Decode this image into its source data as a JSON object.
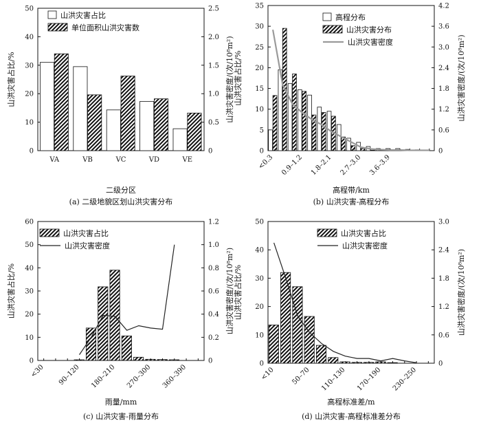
{
  "chart_data": [
    {
      "id": "a",
      "type": "bar",
      "title": "",
      "caption": "(a) 二级地貌区划山洪灾害分布",
      "xlabel": "二级分区",
      "ylabel": "山洪灾害占比/%",
      "y2label": "山洪灾害密度/(次/10⁸m²)",
      "categories": [
        "VA",
        "VB",
        "VC",
        "VD",
        "VE"
      ],
      "ylim": [
        0,
        50
      ],
      "yticks": [
        "0",
        "10",
        "20",
        "30",
        "40",
        "50"
      ],
      "y2lim": [
        0,
        2.5
      ],
      "y2ticks": [
        "0",
        "0.5",
        "1.0",
        "1.5",
        "2.0",
        "2.5"
      ],
      "series": [
        {
          "name": "山洪灾害占比",
          "kind": "bar",
          "axis": "left",
          "style": "open",
          "values": [
            31,
            29.5,
            14.3,
            17.3,
            7.7
          ]
        },
        {
          "name": "单位面积山洪灾害数",
          "kind": "bar",
          "axis": "right",
          "style": "hatch",
          "values": [
            1.7,
            0.98,
            1.31,
            0.91,
            0.66
          ]
        }
      ],
      "legend": "top-left"
    },
    {
      "id": "b",
      "type": "bar",
      "title": "",
      "caption": "(b) 山洪灾害-高程分布",
      "xlabel": "高程带/km",
      "ylabel": "山洪灾害占比/%",
      "y2label": "山洪灾害密度/(次/10⁸m²)",
      "categories": [
        "<0.3",
        "0.3–0.6",
        "0.6–0.9",
        "0.9–1.2",
        "1.2–1.5",
        "1.5–1.8",
        "1.8–2.1",
        "2.1–2.4",
        "2.4–2.7",
        "2.7–3.0",
        "3.0–3.3",
        "3.3–3.6",
        "3.6–3.9",
        "3.9–4.2",
        "4.2–4.5",
        "4.5–4.8",
        "4.8–5.1"
      ],
      "xtick_labels": [
        "<0.3",
        "",
        "",
        "0.9–1.2",
        "",
        "",
        "1.8–2.1",
        "",
        "",
        "2.7–3.0",
        "",
        "",
        "3.6–3.9",
        "",
        "",
        "",
        ""
      ],
      "ylim": [
        0,
        35
      ],
      "yticks": [
        "0",
        "5",
        "10",
        "15",
        "20",
        "25",
        "30",
        "35"
      ],
      "y2lim": [
        0,
        4.2
      ],
      "y2ticks": [
        "0",
        "0.6",
        "1.2",
        "1.8",
        "2.4",
        "3.0",
        "3.6",
        "4.2"
      ],
      "series": [
        {
          "name": "高程分布",
          "kind": "bar",
          "axis": "left",
          "style": "open",
          "values": [
            5,
            19.5,
            16.2,
            14.7,
            13.4,
            10.5,
            9.5,
            6.3,
            3,
            2,
            1,
            0.5,
            0.5,
            0.5,
            0.3,
            0.2,
            0.1
          ]
        },
        {
          "name": "山洪灾害分布",
          "kind": "bar",
          "axis": "left",
          "style": "hatch",
          "values": [
            13.3,
            29.5,
            18.5,
            14.3,
            8.6,
            9.2,
            8.3,
            3.3,
            1.2,
            0.5,
            0.1,
            0.1,
            0,
            0,
            0,
            0,
            0
          ]
        },
        {
          "name": "山洪灾害密度",
          "kind": "line",
          "axis": "right",
          "color": "#9a9a9a",
          "values": [
            3.5,
            1.9,
            1.35,
            1.1,
            0.9,
            0.75,
            0.55,
            0.4,
            0.25,
            0.1,
            0.05,
            0.03,
            0.02,
            0.02,
            0.01,
            0.01,
            0.01
          ]
        }
      ],
      "legend": "top-right"
    },
    {
      "id": "c",
      "type": "bar",
      "title": "",
      "caption": "(c) 山洪灾害-雨量分布",
      "xlabel": "雨量/mm",
      "ylabel": "山洪灾害占比/%",
      "y2label": "山洪灾害密度/(次/10⁸m²)",
      "categories": [
        "<30",
        "30–60",
        "60–90",
        "90–120",
        "120–150",
        "150–180",
        "180–210",
        "210–240",
        "240–270",
        "270–300",
        "300–330",
        "330–360",
        "360–390",
        "390–420"
      ],
      "xtick_labels": [
        "<30",
        "",
        "",
        "90–120",
        "",
        "",
        "180–210",
        "",
        "",
        "270–300",
        "",
        "",
        "360–390",
        ""
      ],
      "ylim": [
        0,
        60
      ],
      "yticks": [
        "0",
        "10",
        "20",
        "30",
        "40",
        "50",
        "60"
      ],
      "y2lim": [
        0,
        1.2
      ],
      "y2ticks": [
        "0",
        "0.2",
        "0.4",
        "0.6",
        "0.8",
        "1.0",
        "1.2"
      ],
      "series": [
        {
          "name": "山洪灾害占比",
          "kind": "bar",
          "axis": "left",
          "style": "hatch",
          "values": [
            0,
            0,
            0,
            0.3,
            14,
            31.8,
            39,
            10.6,
            1.4,
            0.5,
            0.4,
            0.3,
            0,
            0
          ]
        },
        {
          "name": "山洪灾害密度",
          "kind": "line",
          "axis": "right",
          "color": "#222222",
          "values": [
            null,
            null,
            null,
            0.05,
            0.2,
            0.39,
            0.38,
            0.26,
            0.3,
            0.28,
            0.27,
            1.0,
            null,
            null
          ]
        }
      ],
      "legend": "top-left"
    },
    {
      "id": "d",
      "type": "bar",
      "title": "",
      "caption": "(d) 山洪灾害-高程标准差分布",
      "xlabel": "高程标准差/m",
      "ylabel": "山洪灾害占比/%",
      "y2label": "山洪灾害密度/(次/10⁸m²)",
      "categories": [
        "<10",
        "10–30",
        "30–50",
        "50–70",
        "70–90",
        "90–110",
        "110–130",
        "130–150",
        "150–170",
        "170–190",
        "190–210",
        "210–230",
        "230–250",
        "250–270"
      ],
      "xtick_labels": [
        "<10",
        "",
        "",
        "50–70",
        "",
        "",
        "110–130",
        "",
        "",
        "170–190",
        "",
        "",
        "230–250",
        ""
      ],
      "ylim": [
        0,
        50
      ],
      "yticks": [
        "0",
        "10",
        "20",
        "30",
        "40",
        "50"
      ],
      "y2lim": [
        0,
        3.0
      ],
      "y2ticks": [
        "0",
        "0.6",
        "1.2",
        "1.8",
        "2.4",
        "3.0"
      ],
      "series": [
        {
          "name": "山洪灾害占比",
          "kind": "bar",
          "axis": "left",
          "style": "hatch",
          "values": [
            13.5,
            32,
            27,
            16.5,
            6.3,
            2,
            0.5,
            0.3,
            0.3,
            0.5,
            0.2,
            0,
            0,
            0
          ]
        },
        {
          "name": "山洪灾害密度",
          "kind": "line",
          "axis": "right",
          "color": "#222222",
          "values": [
            2.55,
            1.8,
            1.0,
            0.65,
            0.42,
            0.25,
            0.15,
            0.1,
            0.1,
            0.05,
            0.1,
            0.05,
            0.01,
            null
          ]
        }
      ],
      "legend": "top-right"
    }
  ]
}
